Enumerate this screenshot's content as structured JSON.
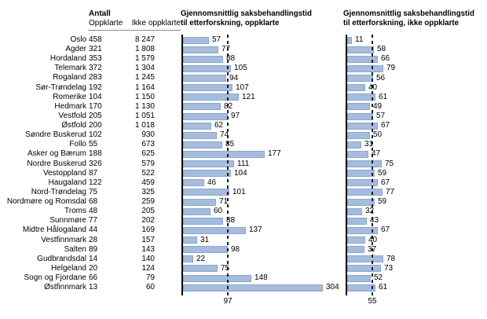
{
  "header": {
    "antall": "Antall",
    "col_solved": "Oppklarte",
    "col_unsolved": "Ikke oppklarte"
  },
  "titles": {
    "solved_line1": "Gjennomsnittlig saksbehandlingstid",
    "solved_line2": "til etterforskning, oppklarte",
    "unsolved_line1": "Gjennomsnittlig saksbehandlingstid",
    "unsolved_line2": "til etterforskning, ikke oppklarte"
  },
  "colors": {
    "bar_fill": "#a6bcdd",
    "bar_border": "#8ca6cf",
    "axis": "#000000",
    "average_line": "#1a1a1a"
  },
  "chart_data": {
    "type": "bar",
    "orientation": "horizontal",
    "grid": false,
    "legend_position": "none",
    "categories": [
      "Oslo",
      "Agder",
      "Hordaland",
      "Telemark",
      "Rogaland",
      "Sør-Trøndelag",
      "Romerike",
      "Hedmark",
      "Vestfold",
      "Østfold",
      "Søndre Buskerud",
      "Follo",
      "Asker og Bærum",
      "Nordre Buskerud",
      "Vestoppland",
      "Haugaland",
      "Nord-Trøndelag",
      "Nordmøre og Romsdal",
      "Troms",
      "Sunnmøre",
      "Midtre Hålogaland",
      "Vestfinnmark",
      "Salten",
      "Gudbrandsdal",
      "Helgeland",
      "Sogn og Fjordane",
      "Østfinnmark"
    ],
    "series": [
      {
        "name": "Antall oppklarte",
        "display": "table-column",
        "values": [
          458,
          321,
          353,
          372,
          283,
          192,
          104,
          170,
          205,
          200,
          102,
          55,
          188,
          326,
          87,
          122,
          75,
          68,
          48,
          77,
          44,
          28,
          89,
          14,
          20,
          66,
          13
        ]
      },
      {
        "name": "Antall ikke oppklarte",
        "display": "table-column",
        "values": [
          8247,
          1808,
          1579,
          1304,
          1245,
          1164,
          1150,
          1130,
          1051,
          1018,
          930,
          673,
          625,
          579,
          522,
          459,
          325,
          259,
          205,
          202,
          169,
          157,
          143,
          140,
          124,
          79,
          60
        ]
      },
      {
        "name": "Gjennomsnittlig saksbehandlingstid til etterforskning, oppklarte",
        "display": "bar-chart",
        "values": [
          57,
          77,
          88,
          105,
          94,
          107,
          121,
          82,
          97,
          62,
          74,
          85,
          177,
          111,
          104,
          46,
          101,
          71,
          60,
          88,
          137,
          31,
          98,
          22,
          75,
          148,
          304
        ],
        "xlim": [
          0,
          320
        ],
        "average_line": 97
      },
      {
        "name": "Gjennomsnittlig saksbehandlingstid til etterforskning, ikke oppklarte",
        "display": "bar-chart",
        "values": [
          11,
          58,
          66,
          79,
          56,
          40,
          61,
          49,
          57,
          67,
          50,
          31,
          47,
          75,
          59,
          67,
          77,
          59,
          32,
          43,
          67,
          40,
          37,
          78,
          73,
          52,
          61
        ],
        "xlim": [
          0,
          320
        ],
        "average_line": 55
      }
    ]
  }
}
